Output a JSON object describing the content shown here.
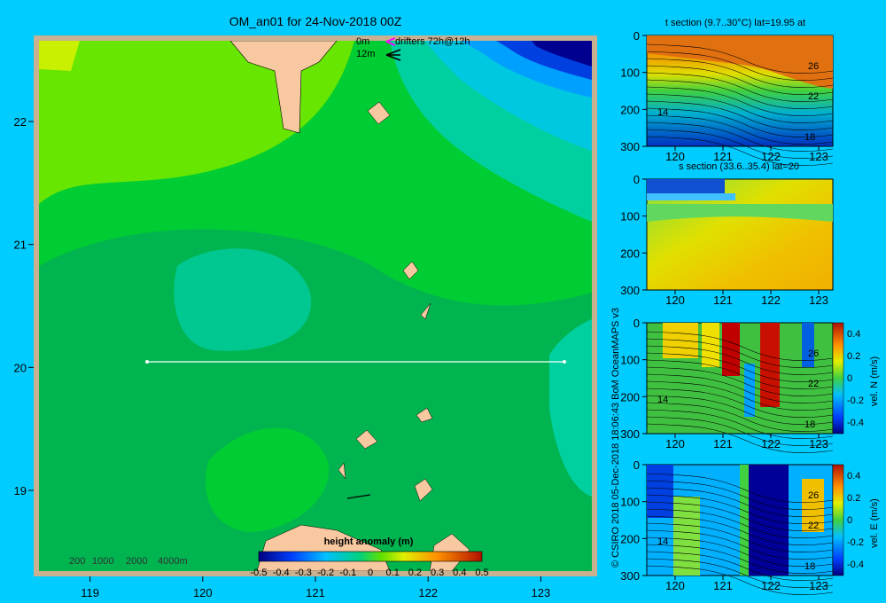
{
  "header": {
    "title": "OM_an01 for 24-Nov-2018 00Z",
    "legend_0m": "0m",
    "legend_12m": "12m",
    "drifters_label": "drifters 72h@12h"
  },
  "main_map": {
    "x_ticks": [
      "119",
      "120",
      "121",
      "122",
      "123"
    ],
    "y_ticks": [
      "22",
      "21",
      "20",
      "19"
    ],
    "colorbar_title": "height anomaly (m)",
    "colorbar_ticks": [
      "-0.5",
      "-0.4",
      "-0.3",
      "-0.2",
      "-0.1",
      "0",
      "0.1",
      "0.2",
      "0.3",
      "0.4",
      "0.5"
    ],
    "depth_legend": [
      "200",
      "1000",
      "2000",
      "4000m"
    ],
    "section_line": {
      "lon_start": 119.5,
      "lon_end": 123.2,
      "lat": 20.0
    }
  },
  "credit": "© CSIRO 2018  05-Dec-2018 18:06:43 BoM OceanMAPS v3",
  "panels": [
    {
      "title": "t section (9.7..30°C) lat=19.95 at",
      "x_ticks": [
        "120",
        "121",
        "122",
        "123"
      ],
      "y_ticks": [
        "0",
        "100",
        "200",
        "300"
      ],
      "contour_labels": [
        "26",
        "22",
        "14",
        "18"
      ]
    },
    {
      "title": "s section (33.6..35.4) lat=20",
      "x_ticks": [
        "120",
        "121",
        "122",
        "123"
      ],
      "y_ticks": [
        "0",
        "100",
        "200",
        "300"
      ]
    },
    {
      "title": "",
      "x_ticks": [
        "120",
        "121",
        "122",
        "123"
      ],
      "y_ticks": [
        "0",
        "100",
        "200",
        "300"
      ],
      "contour_labels": [
        "26",
        "22",
        "14",
        "18"
      ],
      "colorbar_label": "vel. N (m/s)",
      "colorbar_ticks": [
        "0.4",
        "0.2",
        "0",
        "-0.2",
        "-0.4"
      ]
    },
    {
      "title": "",
      "x_ticks": [
        "120",
        "121",
        "122",
        "123"
      ],
      "y_ticks": [
        "0",
        "100",
        "200",
        "300"
      ],
      "contour_labels": [
        "26",
        "22",
        "14",
        "18"
      ],
      "colorbar_label": "vel. E (m/s)",
      "colorbar_ticks": [
        "0.4",
        "0.2",
        "0",
        "-0.2",
        "-0.4"
      ]
    }
  ],
  "colors": {
    "background": "#00ccff",
    "land": "#f8c8a0",
    "frame": "#c8b090",
    "green_light": "#66e600",
    "green_mid": "#00cc33",
    "green_dark": "#00b050",
    "teal": "#00c890"
  },
  "chart_data": {
    "type": "heatmap",
    "title": "OM_an01 for 24-Nov-2018 00Z",
    "colorbar_label": "height anomaly (m)",
    "colorbar_range": [
      -0.5,
      0.5
    ],
    "xlim": [
      118.5,
      123.5
    ],
    "ylim": [
      18.3,
      22.7
    ],
    "section_lat": 20.0,
    "section_lon_range": [
      119.5,
      123.2
    ]
  }
}
